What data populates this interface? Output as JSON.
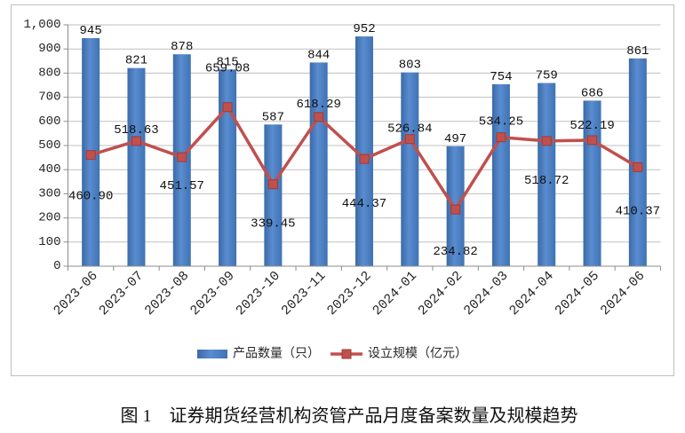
{
  "chart_data": {
    "type": "bar",
    "title": "图 1　证券期货经营机构资管产品月度备案数量及规模趋势",
    "categories": [
      "2023-06",
      "2023-07",
      "2023-08",
      "2023-09",
      "2023-10",
      "2023-11",
      "2023-12",
      "2024-01",
      "2024-02",
      "2024-03",
      "2024-04",
      "2024-05",
      "2024-06"
    ],
    "ylim": [
      0,
      1000
    ],
    "yticks": [
      {
        "value": 0,
        "label": "0"
      },
      {
        "value": 100,
        "label": "100"
      },
      {
        "value": 200,
        "label": "200"
      },
      {
        "value": 300,
        "label": "300"
      },
      {
        "value": 400,
        "label": "400"
      },
      {
        "value": 500,
        "label": "500"
      },
      {
        "value": 600,
        "label": "600"
      },
      {
        "value": 700,
        "label": "700"
      },
      {
        "value": 800,
        "label": "800"
      },
      {
        "value": 900,
        "label": "900"
      },
      {
        "value": 1000,
        "label": "1,000"
      }
    ],
    "grid": true,
    "legend": "bottom",
    "series": [
      {
        "name": "产品数量（只）",
        "type": "bar",
        "color": "#4a7ebb",
        "values": [
          945,
          821,
          878,
          815,
          587,
          844,
          952,
          803,
          497,
          754,
          759,
          686,
          861
        ]
      },
      {
        "name": "设立规模（亿元）",
        "type": "line",
        "color": "#c0504d",
        "values": [
          460.9,
          518.63,
          451.57,
          659.08,
          339.45,
          618.29,
          444.37,
          526.84,
          234.82,
          534.25,
          518.72,
          522.19,
          410.37
        ],
        "labels": [
          "460.90",
          "518.63",
          "451.57",
          "659.08",
          "339.45",
          "618.29",
          "444.37",
          "526.84",
          "234.82",
          "534.25",
          "518.72",
          "522.19",
          "410.37"
        ]
      }
    ]
  }
}
